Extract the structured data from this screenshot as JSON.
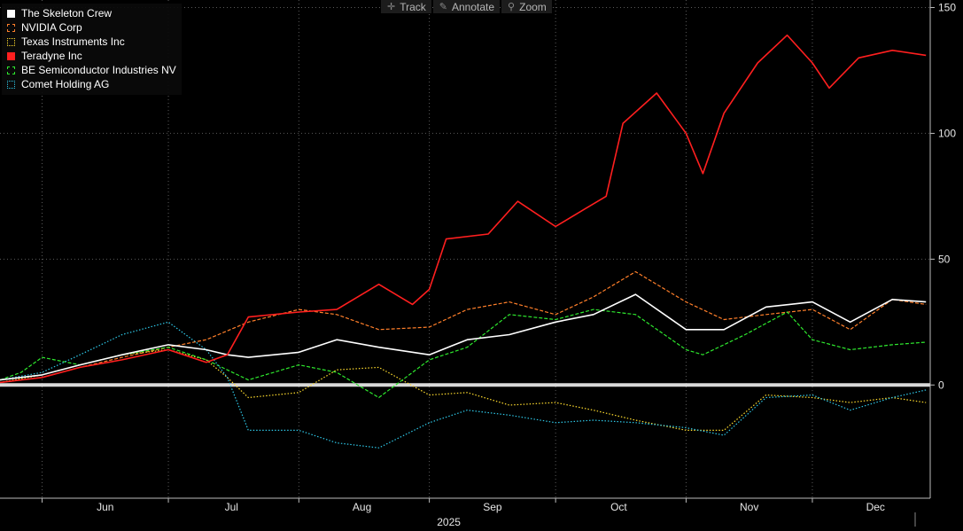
{
  "toolbar": {
    "track": {
      "label": "Track",
      "icon": "crosshair-icon"
    },
    "annotate": {
      "label": "Annotate",
      "icon": "pencil-icon"
    },
    "zoom": {
      "label": "Zoom",
      "icon": "magnifier-icon"
    }
  },
  "chart_data": {
    "type": "line",
    "x_start": "2025-05-22",
    "x_end": "2025-12-29",
    "ylim": [
      -45,
      153
    ],
    "y_ticks": [
      0,
      50,
      100,
      150
    ],
    "x_ticks": [
      {
        "label": "Jun",
        "date": "2025-06-01"
      },
      {
        "label": "Jul",
        "date": "2025-07-01"
      },
      {
        "label": "Aug",
        "date": "2025-08-01"
      },
      {
        "label": "Sep",
        "date": "2025-09-01"
      },
      {
        "label": "Oct",
        "date": "2025-10-01"
      },
      {
        "label": "Nov",
        "date": "2025-11-01"
      },
      {
        "label": "Dec",
        "date": "2025-12-01"
      }
    ],
    "year_label": "2025",
    "grid": true,
    "zero_line": true,
    "legend_position": "top-left",
    "series": [
      {
        "name": "The Skeleton Crew",
        "color": "#ffffff",
        "style": "solid",
        "swatch": "filled",
        "x": [
          "2025-05-22",
          "2025-06-01",
          "2025-06-10",
          "2025-06-20",
          "2025-07-01",
          "2025-07-10",
          "2025-07-15",
          "2025-07-20",
          "2025-08-01",
          "2025-08-10",
          "2025-08-20",
          "2025-09-01",
          "2025-09-10",
          "2025-09-20",
          "2025-10-01",
          "2025-10-10",
          "2025-10-20",
          "2025-11-01",
          "2025-11-10",
          "2025-11-20",
          "2025-12-01",
          "2025-12-10",
          "2025-12-20",
          "2025-12-28"
        ],
        "y": [
          2,
          4,
          8,
          12,
          16,
          14,
          12,
          11,
          13,
          18,
          15,
          12,
          18,
          20,
          25,
          28,
          36,
          22,
          22,
          31,
          33,
          25,
          34,
          33
        ]
      },
      {
        "name": "NVIDIA Corp",
        "color": "#ff7f2a",
        "style": "dashed",
        "swatch": "outline",
        "x": [
          "2025-05-22",
          "2025-06-01",
          "2025-06-10",
          "2025-06-20",
          "2025-07-01",
          "2025-07-10",
          "2025-07-20",
          "2025-08-01",
          "2025-08-10",
          "2025-08-20",
          "2025-09-01",
          "2025-09-10",
          "2025-09-20",
          "2025-10-01",
          "2025-10-10",
          "2025-10-20",
          "2025-11-01",
          "2025-11-10",
          "2025-11-20",
          "2025-12-01",
          "2025-12-10",
          "2025-12-20",
          "2025-12-28"
        ],
        "y": [
          1,
          3,
          7,
          11,
          15,
          18,
          25,
          30,
          28,
          22,
          23,
          30,
          33,
          28,
          35,
          45,
          33,
          26,
          28,
          30,
          22,
          34,
          32
        ]
      },
      {
        "name": "Texas Instruments Inc",
        "color": "#ffdc2e",
        "style": "dotted",
        "swatch": "outline",
        "x": [
          "2025-05-22",
          "2025-06-01",
          "2025-06-10",
          "2025-06-20",
          "2025-07-01",
          "2025-07-10",
          "2025-07-15",
          "2025-07-20",
          "2025-08-01",
          "2025-08-10",
          "2025-08-20",
          "2025-09-01",
          "2025-09-10",
          "2025-09-20",
          "2025-10-01",
          "2025-10-10",
          "2025-10-20",
          "2025-11-01",
          "2025-11-10",
          "2025-11-20",
          "2025-12-01",
          "2025-12-10",
          "2025-12-20",
          "2025-12-28"
        ],
        "y": [
          1,
          4,
          8,
          12,
          14,
          10,
          3,
          -5,
          -3,
          6,
          7,
          -4,
          -3,
          -8,
          -7,
          -10,
          -14,
          -18,
          -18,
          -4,
          -5,
          -7,
          -5,
          -7
        ]
      },
      {
        "name": "Teradyne Inc",
        "color": "#ff1f1f",
        "style": "solid",
        "swatch": "filled",
        "x": [
          "2025-05-22",
          "2025-06-01",
          "2025-06-10",
          "2025-06-20",
          "2025-07-01",
          "2025-07-10",
          "2025-07-15",
          "2025-07-20",
          "2025-08-01",
          "2025-08-10",
          "2025-08-20",
          "2025-08-28",
          "2025-09-01",
          "2025-09-05",
          "2025-09-15",
          "2025-09-22",
          "2025-10-01",
          "2025-10-08",
          "2025-10-13",
          "2025-10-17",
          "2025-10-25",
          "2025-11-01",
          "2025-11-05",
          "2025-11-10",
          "2025-11-18",
          "2025-11-25",
          "2025-12-01",
          "2025-12-05",
          "2025-12-12",
          "2025-12-20",
          "2025-12-28"
        ],
        "y": [
          1,
          3,
          7,
          10,
          14,
          9,
          12,
          27,
          29,
          30,
          40,
          32,
          38,
          58,
          60,
          73,
          63,
          70,
          75,
          104,
          116,
          100,
          84,
          108,
          128,
          139,
          128,
          118,
          130,
          133,
          131
        ]
      },
      {
        "name": "BE Semiconductor Industries NV",
        "color": "#2ee82e",
        "style": "dashed",
        "swatch": "outline",
        "x": [
          "2025-05-22",
          "2025-05-27",
          "2025-06-01",
          "2025-06-10",
          "2025-06-20",
          "2025-07-01",
          "2025-07-10",
          "2025-07-20",
          "2025-08-01",
          "2025-08-10",
          "2025-08-20",
          "2025-09-01",
          "2025-09-10",
          "2025-09-20",
          "2025-10-01",
          "2025-10-10",
          "2025-10-20",
          "2025-11-01",
          "2025-11-05",
          "2025-11-15",
          "2025-11-25",
          "2025-12-01",
          "2025-12-10",
          "2025-12-20",
          "2025-12-28"
        ],
        "y": [
          2,
          5,
          11,
          8,
          12,
          15,
          10,
          2,
          8,
          5,
          -5,
          10,
          15,
          28,
          26,
          30,
          28,
          14,
          12,
          20,
          29,
          18,
          14,
          16,
          17
        ]
      },
      {
        "name": "Comet Holding AG",
        "color": "#2ec8e8",
        "style": "dotted",
        "swatch": "outline",
        "x": [
          "2025-05-22",
          "2025-06-01",
          "2025-06-10",
          "2025-06-20",
          "2025-07-01",
          "2025-07-10",
          "2025-07-15",
          "2025-07-20",
          "2025-08-01",
          "2025-08-10",
          "2025-08-20",
          "2025-09-01",
          "2025-09-10",
          "2025-09-20",
          "2025-10-01",
          "2025-10-10",
          "2025-10-20",
          "2025-11-01",
          "2025-11-10",
          "2025-11-20",
          "2025-12-01",
          "2025-12-10",
          "2025-12-20",
          "2025-12-28"
        ],
        "y": [
          2,
          5,
          12,
          20,
          25,
          14,
          3,
          -18,
          -18,
          -23,
          -25,
          -15,
          -10,
          -12,
          -15,
          -14,
          -15,
          -17,
          -20,
          -5,
          -4,
          -10,
          -5,
          -2
        ]
      }
    ]
  }
}
